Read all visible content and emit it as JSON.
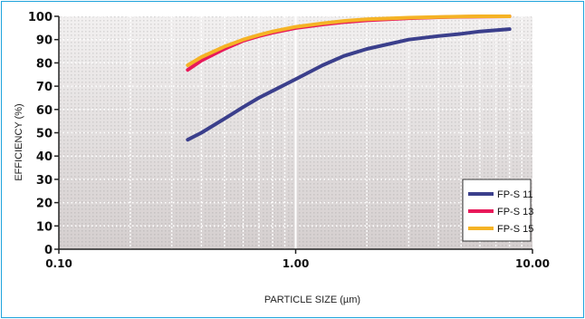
{
  "chart_data": {
    "type": "line",
    "xlabel": "PARTICLE SIZE (µm)",
    "ylabel": "EFFICIENCY (%)",
    "x_scale": "log",
    "xlim": [
      0.1,
      10
    ],
    "ylim": [
      0,
      100
    ],
    "x_ticks": [
      {
        "value": 0.1,
        "label": "0.10"
      },
      {
        "value": 1,
        "label": "1.00"
      },
      {
        "value": 10,
        "label": "10.00"
      }
    ],
    "y_ticks": [
      0,
      10,
      20,
      30,
      40,
      50,
      60,
      70,
      80,
      90,
      100
    ],
    "legend_position": "bottom-right",
    "series": [
      {
        "name": "FP-S 11",
        "color": "#3b3f8c",
        "x": [
          0.35,
          0.4,
          0.5,
          0.6,
          0.7,
          0.8,
          1.0,
          1.3,
          1.6,
          2.0,
          3.0,
          4.0,
          5.0,
          6.0,
          8.0
        ],
        "y": [
          47,
          50,
          56,
          61,
          65,
          68,
          73,
          79,
          83,
          86,
          90,
          91.5,
          92.5,
          93.5,
          94.5
        ]
      },
      {
        "name": "FP-S 13",
        "color": "#e8195a",
        "x": [
          0.35,
          0.4,
          0.5,
          0.6,
          0.7,
          0.8,
          1.0,
          1.3,
          1.6,
          2.0,
          3.0,
          4.0,
          5.0,
          6.0,
          8.0
        ],
        "y": [
          77,
          81,
          86,
          89.5,
          91.5,
          93,
          95,
          96.5,
          97.5,
          98.3,
          99.2,
          99.6,
          99.8,
          99.9,
          100
        ]
      },
      {
        "name": "FP-S 15",
        "color": "#f5b325",
        "x": [
          0.35,
          0.4,
          0.5,
          0.6,
          0.7,
          0.8,
          1.0,
          1.3,
          1.6,
          2.0,
          3.0,
          4.0,
          5.0,
          6.0,
          8.0
        ],
        "y": [
          79,
          82.5,
          87,
          90,
          92,
          93.5,
          95.5,
          97,
          98,
          98.7,
          99.4,
          99.7,
          99.9,
          100,
          100
        ]
      }
    ]
  }
}
